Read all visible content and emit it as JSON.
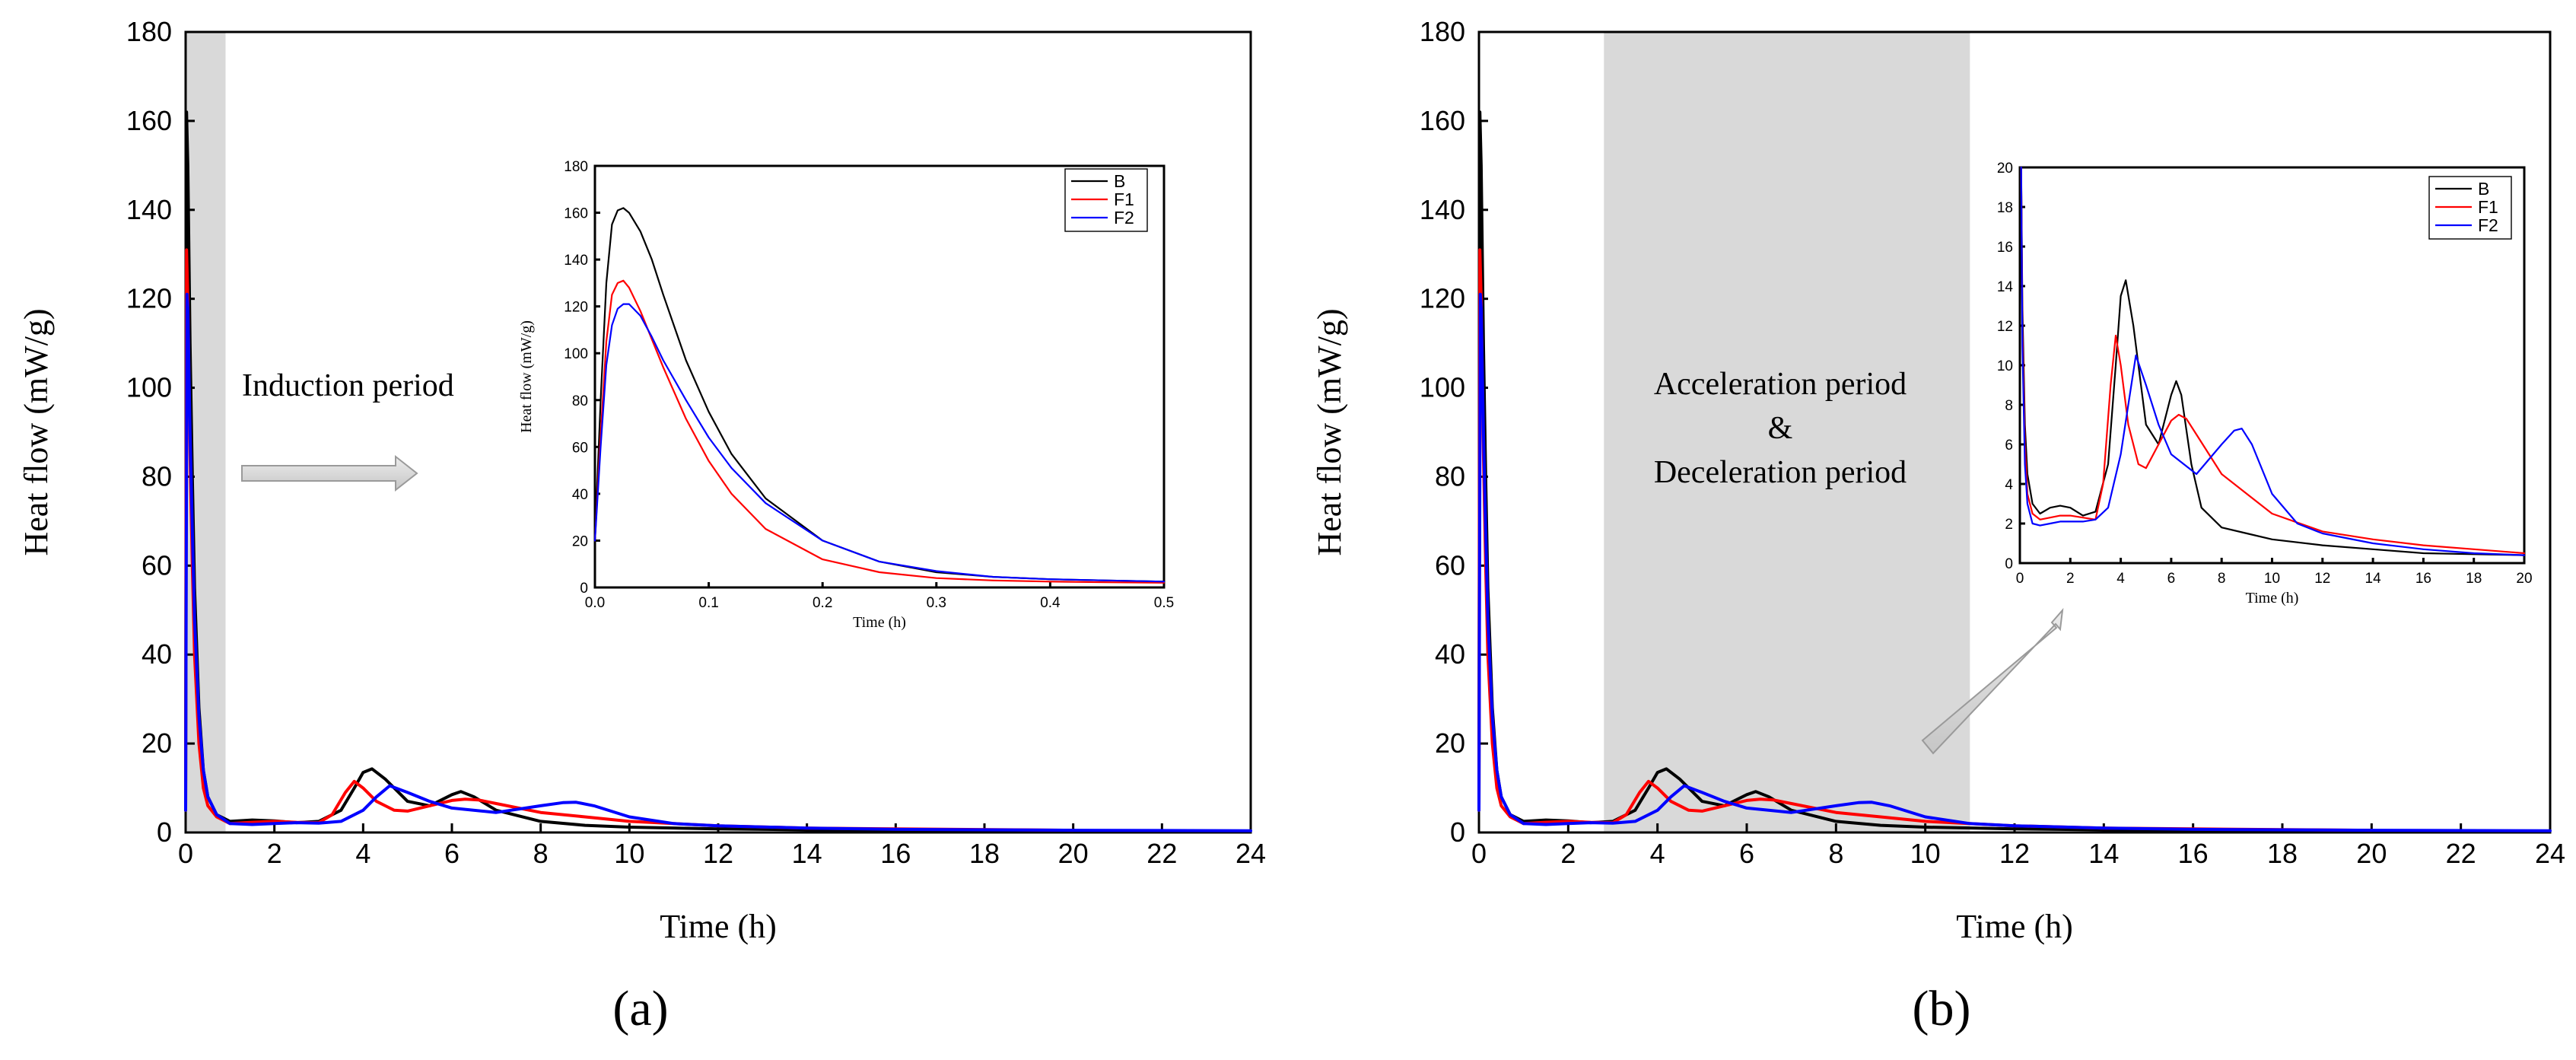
{
  "colors": {
    "B": "#000000",
    "F1": "#ff0000",
    "F2": "#0000ff",
    "shade": "#d9d9d9",
    "arrow": "#d6d6d6"
  },
  "panels": [
    {
      "panel_label": "(a)",
      "annotation_lines": [
        "Induction period"
      ]
    },
    {
      "panel_label": "(b)",
      "annotation_lines": [
        "Acceleration period",
        "&",
        "Deceleration period"
      ]
    }
  ],
  "chart_data": [
    {
      "id": "a-main",
      "type": "line",
      "xlabel": "Time (h)",
      "ylabel": "Heat flow (mW/g)",
      "xlim": [
        0,
        24
      ],
      "ylim": [
        0,
        180
      ],
      "xticks": [
        0,
        2,
        4,
        6,
        8,
        10,
        12,
        14,
        16,
        18,
        20,
        22,
        24
      ],
      "yticks": [
        0,
        20,
        40,
        60,
        80,
        100,
        120,
        140,
        160,
        180
      ],
      "shaded_x_range": [
        0,
        0.9
      ],
      "series": [
        {
          "name": "B",
          "x": [
            0,
            0.02,
            0.05,
            0.1,
            0.15,
            0.2,
            0.3,
            0.4,
            0.5,
            0.7,
            1.0,
            1.5,
            2,
            2.5,
            3,
            3.5,
            3.8,
            4.0,
            4.2,
            4.5,
            5.0,
            5.5,
            6.0,
            6.2,
            6.5,
            7,
            8,
            9,
            10,
            12,
            14,
            16,
            20
          ],
          "y": [
            5,
            162,
            150,
            110,
            80,
            55,
            28,
            14,
            8,
            4,
            2.5,
            2.8,
            2.6,
            2.2,
            2.5,
            5,
            10,
            13.5,
            14.3,
            12,
            7,
            6,
            8.5,
            9.2,
            8,
            5,
            2.5,
            1.6,
            1.2,
            0.8,
            0.6,
            0.4,
            0.3
          ]
        },
        {
          "name": "F1",
          "x": [
            0,
            0.02,
            0.05,
            0.1,
            0.15,
            0.2,
            0.3,
            0.4,
            0.5,
            0.7,
            1.0,
            1.5,
            2,
            2.5,
            3,
            3.3,
            3.6,
            3.8,
            4.0,
            4.3,
            4.7,
            5.0,
            5.5,
            6.0,
            6.3,
            6.6,
            7,
            8,
            9,
            10,
            12,
            14,
            16,
            20
          ],
          "y": [
            5,
            131,
            120,
            85,
            60,
            40,
            20,
            10,
            6,
            3.5,
            2,
            2.3,
            2.5,
            2.3,
            2.2,
            4,
            9,
            11.5,
            10,
            7,
            5,
            4.8,
            6,
            7.2,
            7.5,
            7.3,
            6.5,
            4.5,
            3.5,
            2.5,
            1.5,
            1.0,
            0.8,
            0.5
          ]
        },
        {
          "name": "F2",
          "x": [
            0,
            0.03,
            0.05,
            0.1,
            0.15,
            0.2,
            0.3,
            0.4,
            0.5,
            0.7,
            1.0,
            1.5,
            2,
            2.5,
            3,
            3.5,
            4.0,
            4.3,
            4.6,
            5.0,
            5.5,
            6,
            7,
            8,
            8.5,
            8.8,
            9.2,
            10,
            11,
            12,
            14,
            16,
            20,
            24
          ],
          "y": [
            5,
            121,
            118,
            90,
            68,
            48,
            26,
            14,
            8,
            4,
            2,
            1.8,
            2,
            2.2,
            2.1,
            2.5,
            5,
            8,
            10.5,
            9,
            7,
            5.5,
            4.5,
            6,
            6.7,
            6.8,
            6,
            3.5,
            2,
            1.5,
            1,
            0.7,
            0.5,
            0.4
          ]
        }
      ]
    },
    {
      "id": "a-inset",
      "type": "line",
      "xlabel": "Time (h)",
      "ylabel": "Heat flow (mW/g)",
      "xlim": [
        0,
        0.5
      ],
      "ylim": [
        0,
        180
      ],
      "xticks": [
        0.0,
        0.1,
        0.2,
        0.3,
        0.4,
        0.5
      ],
      "yticks": [
        0,
        20,
        40,
        60,
        80,
        100,
        120,
        140,
        160,
        180
      ],
      "legend": [
        "B",
        "F1",
        "F2"
      ],
      "legend_position": "top-right",
      "series": [
        {
          "name": "B",
          "x": [
            0,
            0.005,
            0.01,
            0.015,
            0.02,
            0.025,
            0.03,
            0.04,
            0.05,
            0.06,
            0.08,
            0.1,
            0.12,
            0.15,
            0.2,
            0.25,
            0.3,
            0.35,
            0.4,
            0.45,
            0.5
          ],
          "y": [
            20,
            80,
            130,
            155,
            161,
            162,
            160,
            152,
            140,
            125,
            97,
            75,
            57,
            38,
            20,
            11,
            6.5,
            4.5,
            3.5,
            3,
            2.5
          ]
        },
        {
          "name": "F1",
          "x": [
            0,
            0.005,
            0.01,
            0.015,
            0.02,
            0.025,
            0.03,
            0.04,
            0.05,
            0.06,
            0.08,
            0.1,
            0.12,
            0.15,
            0.2,
            0.25,
            0.3,
            0.35,
            0.4,
            0.45,
            0.5
          ],
          "y": [
            20,
            65,
            105,
            125,
            130,
            131,
            128,
            118,
            106,
            94,
            72,
            54,
            40,
            25,
            12,
            6.5,
            4,
            3,
            2.5,
            2.2,
            2
          ]
        },
        {
          "name": "F2",
          "x": [
            0,
            0.005,
            0.01,
            0.015,
            0.02,
            0.025,
            0.03,
            0.04,
            0.05,
            0.06,
            0.08,
            0.1,
            0.12,
            0.15,
            0.2,
            0.25,
            0.3,
            0.35,
            0.4,
            0.45,
            0.5
          ],
          "y": [
            20,
            60,
            95,
            112,
            119,
            121,
            121,
            116,
            107,
            97,
            80,
            64,
            51,
            36,
            20,
            11,
            7,
            4.5,
            3.5,
            3,
            2.5
          ]
        }
      ]
    },
    {
      "id": "b-main",
      "type": "line",
      "xlabel": "Time (h)",
      "ylabel": "Heat flow (mW/g)",
      "xlim": [
        0,
        24
      ],
      "ylim": [
        0,
        180
      ],
      "xticks": [
        0,
        2,
        4,
        6,
        8,
        10,
        12,
        14,
        16,
        18,
        20,
        22,
        24
      ],
      "yticks": [
        0,
        20,
        40,
        60,
        80,
        100,
        120,
        140,
        160,
        180
      ],
      "shaded_x_range": [
        2.8,
        11.0
      ],
      "series_ref": "a-main"
    },
    {
      "id": "b-inset",
      "type": "line",
      "xlabel": "Time (h)",
      "ylabel": "",
      "xlim": [
        0,
        20
      ],
      "ylim": [
        0,
        20
      ],
      "xticks": [
        0,
        2,
        4,
        6,
        8,
        10,
        12,
        14,
        16,
        18,
        20
      ],
      "yticks": [
        0,
        2,
        4,
        6,
        8,
        10,
        12,
        14,
        16,
        18,
        20
      ],
      "legend": [
        "B",
        "F1",
        "F2"
      ],
      "legend_position": "top-right",
      "series": [
        {
          "name": "B",
          "x": [
            0.05,
            0.1,
            0.2,
            0.3,
            0.5,
            0.8,
            1.2,
            1.6,
            2.0,
            2.5,
            3.0,
            3.5,
            3.8,
            4.0,
            4.2,
            4.5,
            5.0,
            5.5,
            6.0,
            6.2,
            6.4,
            6.8,
            7.2,
            8,
            9,
            10,
            12,
            14,
            16,
            18,
            20
          ],
          "y": [
            20,
            13,
            7,
            4.5,
            3,
            2.5,
            2.8,
            2.9,
            2.8,
            2.4,
            2.6,
            5,
            10,
            13.5,
            14.3,
            12,
            7,
            6,
            8.5,
            9.2,
            8.5,
            5,
            2.8,
            1.8,
            1.5,
            1.2,
            0.9,
            0.7,
            0.5,
            0.45,
            0.4
          ]
        },
        {
          "name": "F1",
          "x": [
            0.05,
            0.1,
            0.2,
            0.3,
            0.5,
            0.8,
            1.2,
            1.6,
            2.0,
            2.5,
            3.0,
            3.3,
            3.6,
            3.8,
            4.0,
            4.3,
            4.7,
            5.0,
            5.5,
            6.0,
            6.3,
            6.6,
            7.0,
            8,
            9,
            10,
            12,
            14,
            16,
            18,
            20
          ],
          "y": [
            20,
            12,
            6,
            3.5,
            2.5,
            2.2,
            2.3,
            2.4,
            2.4,
            2.3,
            2.2,
            4,
            9,
            11.5,
            10,
            7,
            5,
            4.8,
            6,
            7.2,
            7.5,
            7.3,
            6.5,
            4.5,
            3.5,
            2.5,
            1.6,
            1.2,
            0.9,
            0.7,
            0.5
          ]
        },
        {
          "name": "F2",
          "x": [
            0.05,
            0.1,
            0.2,
            0.3,
            0.5,
            0.8,
            1.2,
            1.6,
            2.0,
            2.5,
            3.0,
            3.5,
            4.0,
            4.3,
            4.6,
            5.0,
            5.5,
            6.0,
            7.0,
            8.0,
            8.5,
            8.8,
            9.2,
            10,
            11,
            12,
            14,
            16,
            18,
            20
          ],
          "y": [
            20,
            11,
            5,
            3,
            2,
            1.9,
            2,
            2.1,
            2.1,
            2.1,
            2.2,
            2.8,
            5.5,
            8,
            10.5,
            9,
            7,
            5.5,
            4.5,
            6,
            6.7,
            6.8,
            6,
            3.5,
            2,
            1.5,
            1,
            0.7,
            0.5,
            0.4
          ]
        }
      ]
    }
  ]
}
